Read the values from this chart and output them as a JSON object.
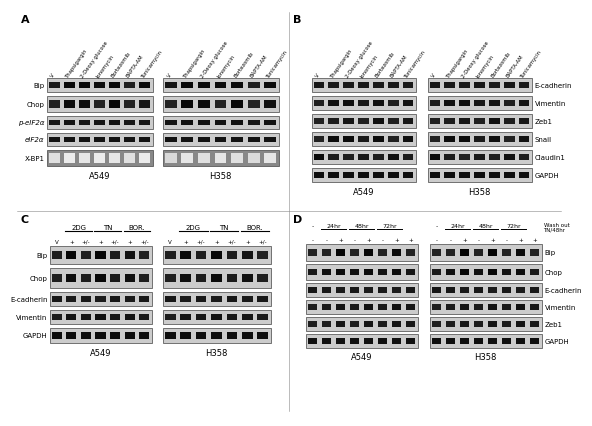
{
  "fig_bg": "#ffffff",
  "blot_bg_light": "#d8d8d8",
  "blot_bg_dark": "#b0b0b0",
  "band_dark": "#1a1a1a",
  "band_med": "#555555",
  "band_light": "#888888",
  "panel_A": {
    "label": "A",
    "col_labels": [
      "V",
      "Thapsigargin",
      "2-Deoxy glucose",
      "Ionomycin",
      "Bortezomib",
      "BAPTA-AM",
      "Tunicamycin"
    ],
    "row_labels": [
      "Bip",
      "Chop",
      "p-eIF2α",
      "eIF2α",
      "X-BP1"
    ],
    "cell_lines": [
      "A549",
      "H358"
    ]
  },
  "panel_B": {
    "label": "B",
    "col_labels": [
      "V",
      "Thapsigargin",
      "2-Deoxy glucose",
      "Ionomycin",
      "Bortezomib",
      "BAPTA-AM",
      "Tunicamycin"
    ],
    "row_labels": [
      "E-cadherin",
      "Vimentin",
      "Zeb1",
      "Snail",
      "Claudin1",
      "GAPDH"
    ],
    "cell_lines": [
      "A549",
      "H358"
    ]
  },
  "panel_C": {
    "label": "C",
    "group_labels": [
      "2DG",
      "TN",
      "BOR."
    ],
    "col_labels": [
      "V",
      "+",
      "+/-",
      "+",
      "+/-",
      "+",
      "+/-"
    ],
    "row_labels": [
      "Bip",
      "Chop",
      "E-cadherin",
      "Vimentin",
      "GAPDH"
    ],
    "cell_lines": [
      "A549",
      "H358"
    ]
  },
  "panel_D": {
    "label": "D",
    "time_labels": [
      "-",
      "24hr",
      "48hr",
      "72hr"
    ],
    "washout_label": "Wash out\nTN/48hr",
    "sub_labels": [
      "-",
      "+",
      "-",
      "+",
      "-",
      "+",
      "-",
      "+"
    ],
    "row_labels": [
      "Bip",
      "Chop",
      "E-cadherin",
      "Vimentin",
      "Zeb1",
      "GAPDH"
    ],
    "cell_lines": [
      "A549",
      "H358"
    ]
  }
}
